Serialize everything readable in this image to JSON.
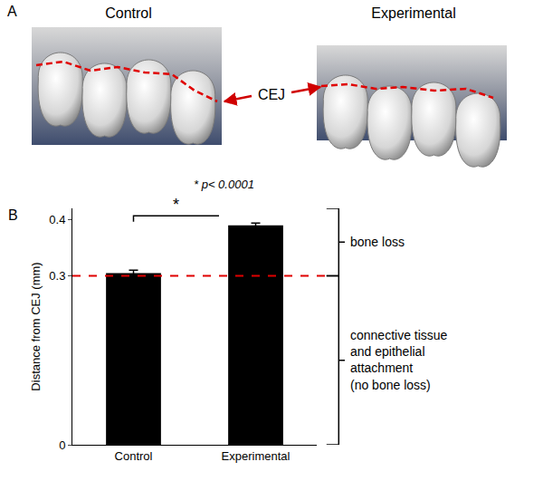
{
  "panel_a": {
    "label": "A",
    "images": [
      {
        "title": "Control"
      },
      {
        "title": "Experimental"
      }
    ],
    "marker_label": "CEJ"
  },
  "chart_data": {
    "panel_label": "B",
    "type": "bar",
    "categories": [
      "Control",
      "Experimental"
    ],
    "values": [
      0.305,
      0.39
    ],
    "errors": [
      0.005,
      0.004
    ],
    "color": "#000000",
    "ylabel": "Distance from CEJ (mm)",
    "ylim": [
      0,
      0.42
    ],
    "yticks": [
      0,
      0.3,
      0.4
    ],
    "grid": false,
    "reference_line": 0.3,
    "significance": {
      "marker": "*",
      "note": "* p< 0.0001"
    },
    "brackets": {
      "upper": [
        "bone loss"
      ],
      "lower": [
        "connective tissue",
        "and epithelial",
        "attachment",
        "(no bone loss)"
      ]
    }
  }
}
